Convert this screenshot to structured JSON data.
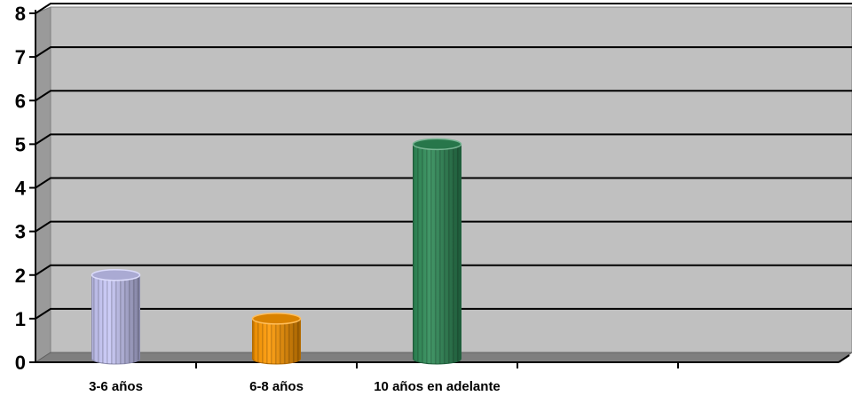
{
  "chart_data": {
    "type": "bar",
    "style": "3d-cylinder",
    "categories": [
      "3-6 años",
      "6-8 años",
      "10 años en adelante",
      "",
      ""
    ],
    "values": [
      2,
      1,
      5,
      null,
      null
    ],
    "bar_colors": [
      "#C8C8F8",
      "#FF9900",
      "#2E8B57"
    ],
    "ylim": [
      0,
      8
    ],
    "yticks": [
      "0",
      "1",
      "2",
      "3",
      "4",
      "5",
      "6",
      "7",
      "8"
    ],
    "grid": true,
    "plot_background": "#C0C0C0",
    "legend": "none"
  }
}
